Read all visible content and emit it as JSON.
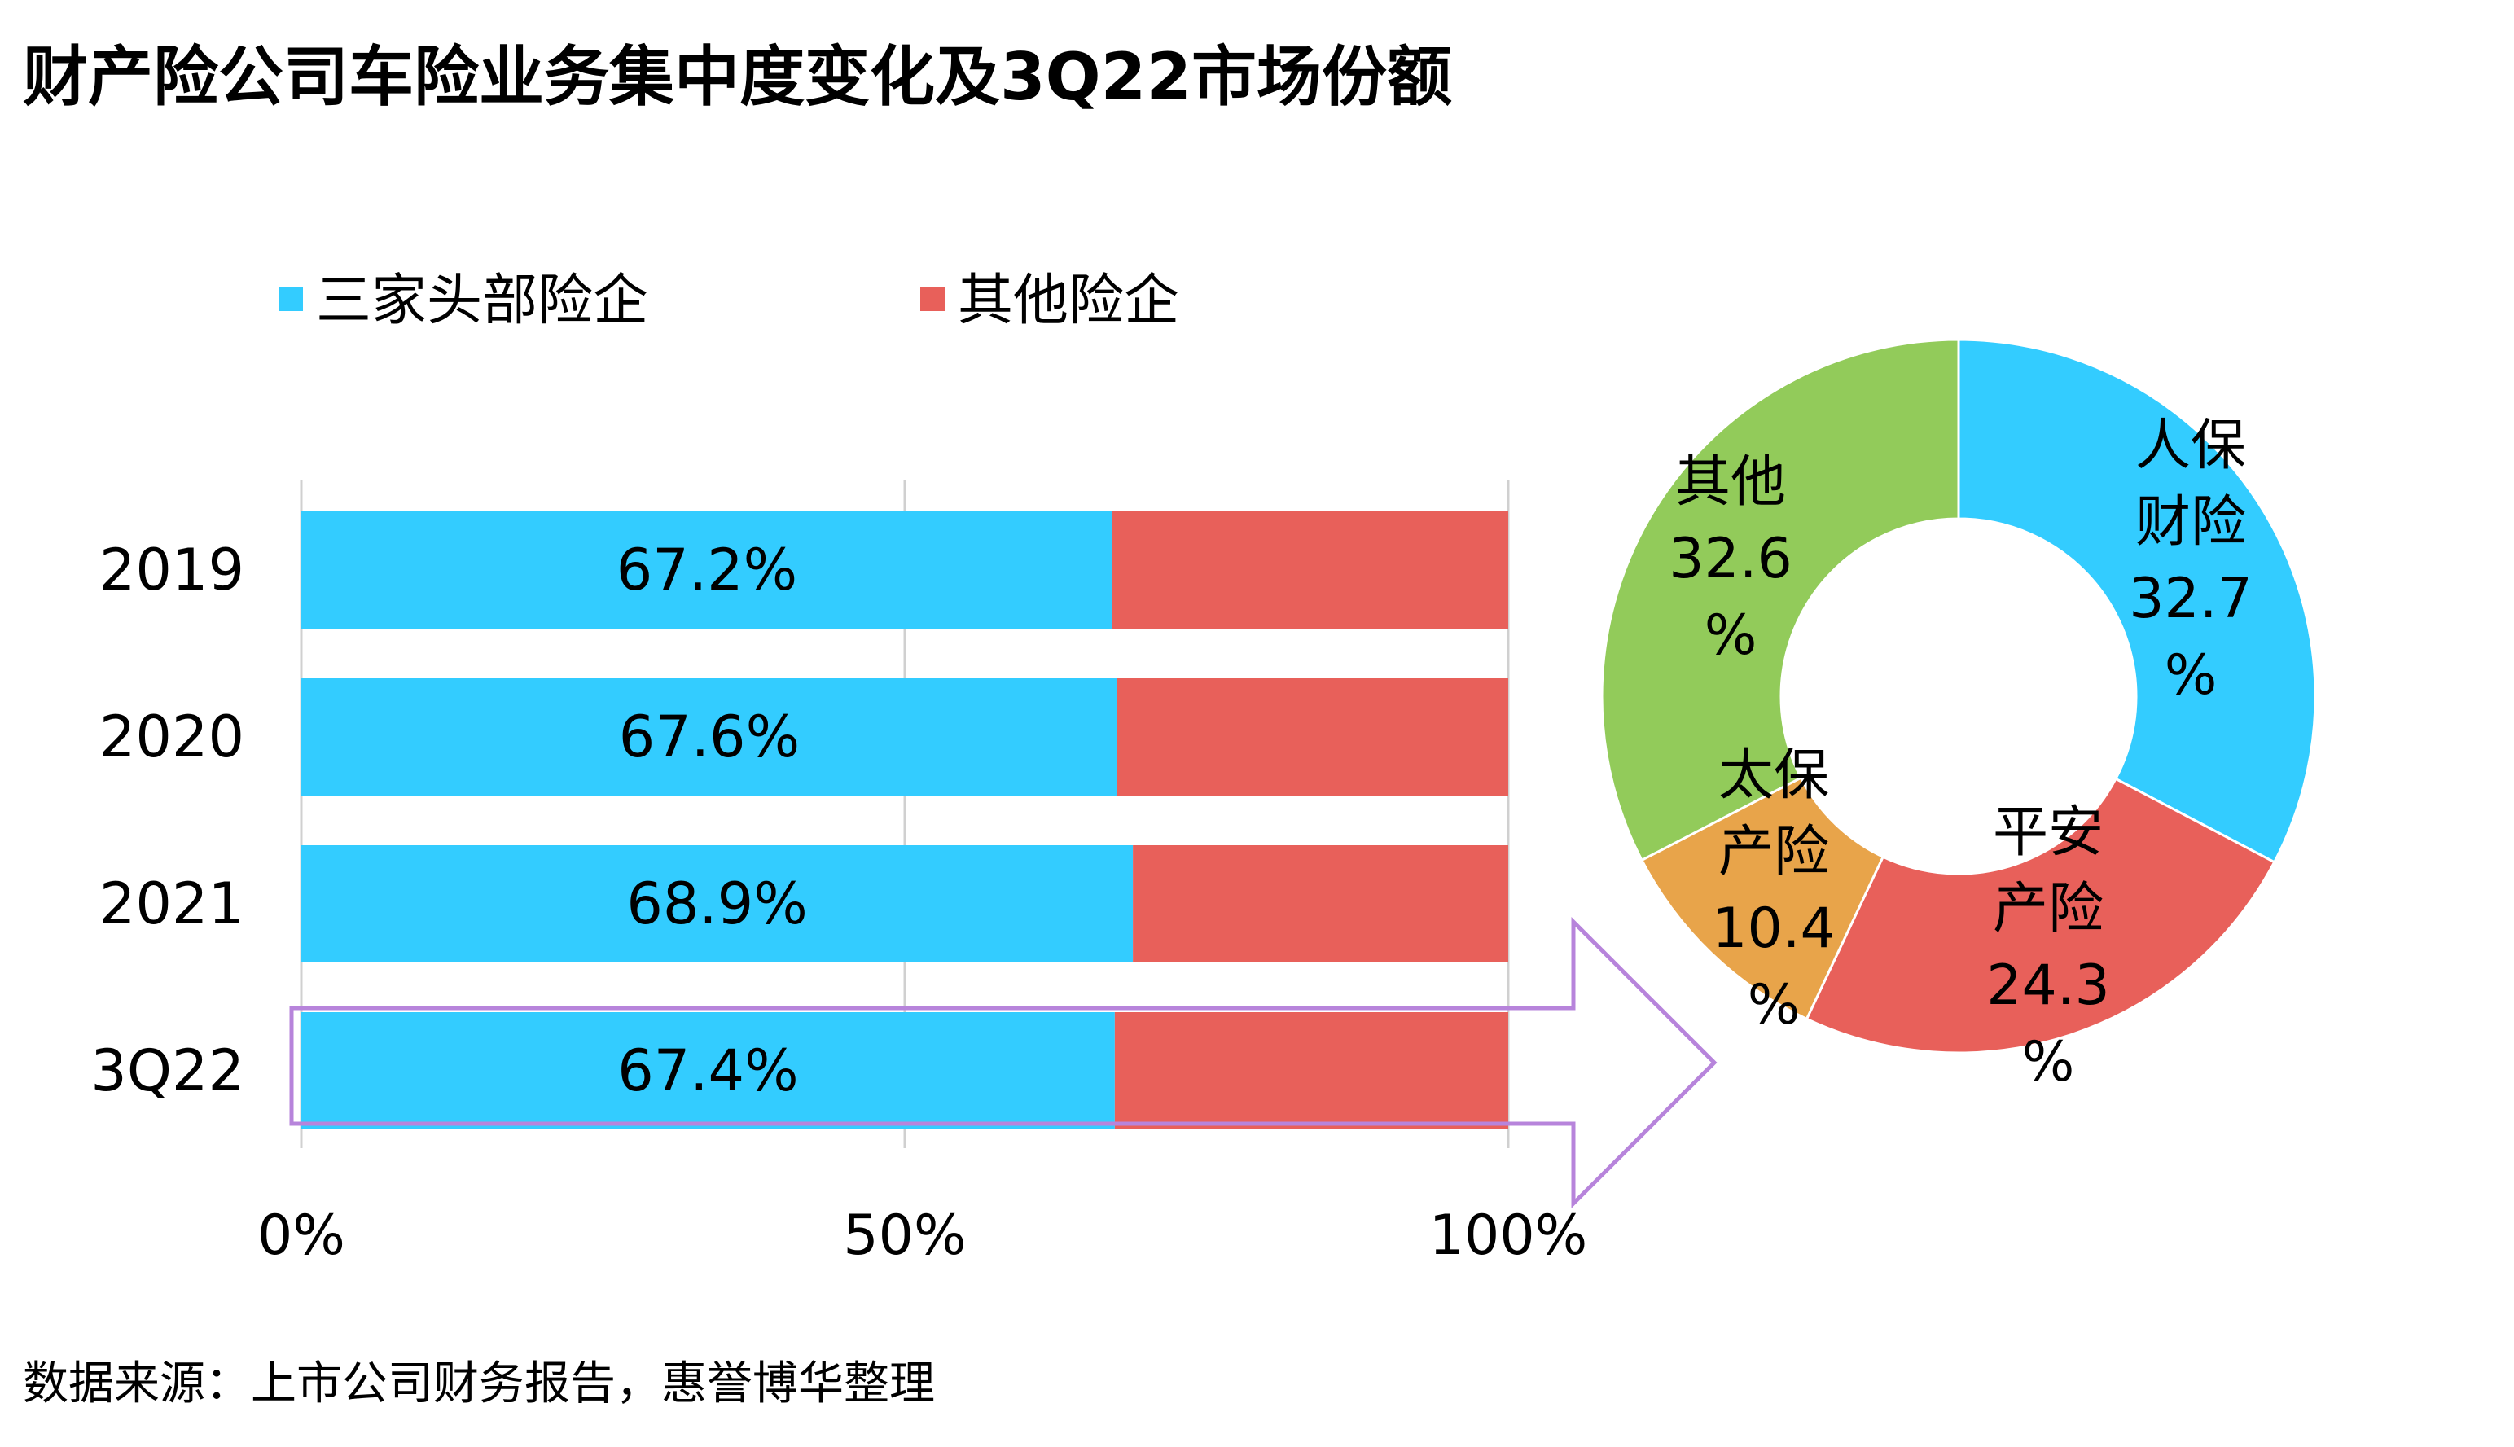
{
  "title": "财产险公司车险业务集中度变化及3Q22市场份额",
  "source": "数据来源：上市公司财务报告，惠誉博华整理",
  "colors": {
    "top3": "#33CCFF",
    "others": "#E8605A",
    "grid": "#d0d0d0",
    "arrow": "#B784DB",
    "pie_renmin": "#33CCFF",
    "pie_pingan": "#E8605A",
    "pie_taibao": "#E8A44A",
    "pie_others": "#92CB5A"
  },
  "chart_data": [
    {
      "type": "bar",
      "orientation": "horizontal",
      "stacked": "percent",
      "categories": [
        "2019",
        "2020",
        "2021",
        "3Q22"
      ],
      "series": [
        {
          "name": "三家头部险企",
          "values": [
            67.2,
            67.6,
            68.9,
            67.4
          ]
        },
        {
          "name": "其他险企",
          "values": [
            32.8,
            32.4,
            31.1,
            32.6
          ]
        }
      ],
      "data_labels": [
        "67.2%",
        "67.6%",
        "68.9%",
        "67.4%"
      ],
      "xticks": [
        "0%",
        "50%",
        "100%"
      ],
      "xlim": [
        0,
        100
      ],
      "grid": true,
      "legend": "top",
      "highlight_category": "3Q22"
    },
    {
      "type": "pie",
      "donut": true,
      "slices": [
        {
          "label": "人保财险",
          "value": 32.7,
          "text": [
            "人保",
            "财险",
            "32.7",
            "%"
          ]
        },
        {
          "label": "平安产险",
          "value": 24.3,
          "text": [
            "平安",
            "产险",
            "24.3",
            "%"
          ]
        },
        {
          "label": "太保产险",
          "value": 10.4,
          "text": [
            "太保",
            "产险",
            "10.4",
            "%"
          ]
        },
        {
          "label": "其他",
          "value": 32.6,
          "text": [
            "其他",
            "32.6",
            "%"
          ]
        }
      ]
    }
  ]
}
